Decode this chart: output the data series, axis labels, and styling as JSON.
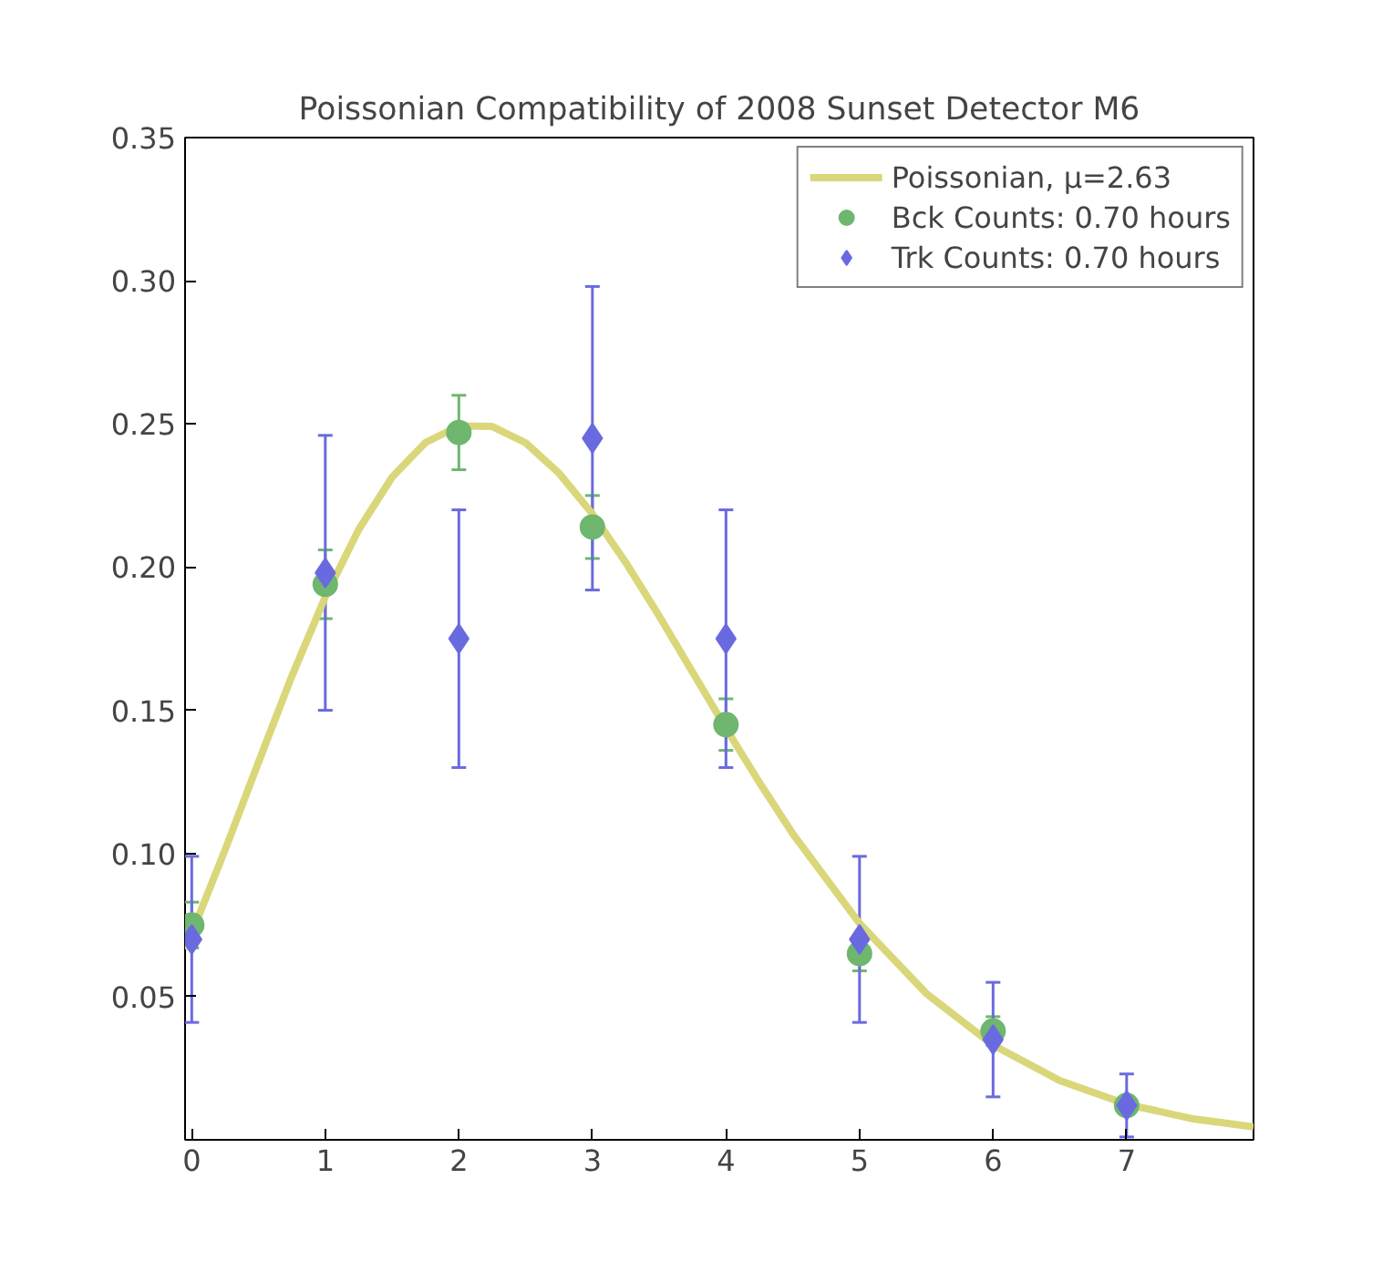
{
  "chart_data": {
    "type": "line",
    "title": "Poissonian Compatibility of 2008 Sunset Detector M6",
    "xlim": [
      -0.05,
      7.95
    ],
    "ylim": [
      0,
      0.35
    ],
    "xticks": [
      0,
      1,
      2,
      3,
      4,
      5,
      6,
      7
    ],
    "yticks": [
      {
        "value": 0,
        "label": null
      },
      {
        "value": 0.05,
        "label": "0.05"
      },
      {
        "value": 0.1,
        "label": "0.10"
      },
      {
        "value": 0.15,
        "label": "0.15"
      },
      {
        "value": 0.2,
        "label": "0.20"
      },
      {
        "value": 0.25,
        "label": "0.25"
      },
      {
        "value": 0.3,
        "label": "0.30"
      },
      {
        "value": 0.35,
        "label": "0.35"
      }
    ],
    "grid": false,
    "legend": "top right",
    "series": [
      {
        "name": "Poissonian, μ=2.63",
        "color": "#d9d77a",
        "x": [
          -0.05,
          0,
          0.25,
          0.5,
          0.75,
          1,
          1.25,
          1.5,
          1.75,
          2,
          2.25,
          2.5,
          2.75,
          3,
          3.25,
          3.5,
          3.75,
          4,
          4.25,
          4.5,
          5,
          5.5,
          6,
          6.5,
          7,
          7.5,
          7.95
        ],
        "values": [
          0.0666,
          0.0721,
          0.1013,
          0.1319,
          0.162,
          0.1896,
          0.2131,
          0.2314,
          0.2435,
          0.2493,
          0.2491,
          0.2434,
          0.2328,
          0.2186,
          0.2016,
          0.1829,
          0.1633,
          0.1437,
          0.1248,
          0.1069,
          0.0756,
          0.0511,
          0.0331,
          0.0207,
          0.0124,
          0.0073,
          0.0045
        ]
      },
      {
        "name": "Bck Counts: 0.70 hours",
        "type": "scatter",
        "color": "#6fb66f",
        "marker": "circle",
        "x": [
          0,
          1,
          2,
          3,
          4,
          5,
          6,
          7
        ],
        "values": [
          0.075,
          0.194,
          0.247,
          0.214,
          0.145,
          0.065,
          0.038,
          0.012
        ],
        "errors": [
          0.008,
          0.012,
          0.013,
          0.011,
          0.009,
          0.006,
          0.005,
          null
        ]
      },
      {
        "name": "Trk Counts: 0.70 hours",
        "type": "scatter",
        "color": "#6a6ae0",
        "marker": "diamond",
        "x": [
          0,
          1,
          2,
          3,
          4,
          5,
          6,
          7
        ],
        "values": [
          0.07,
          0.198,
          0.175,
          0.245,
          0.175,
          0.07,
          0.035,
          0.012
        ],
        "errors": [
          0.029,
          0.048,
          0.045,
          0.053,
          0.045,
          0.029,
          0.02,
          0.011
        ]
      }
    ]
  }
}
